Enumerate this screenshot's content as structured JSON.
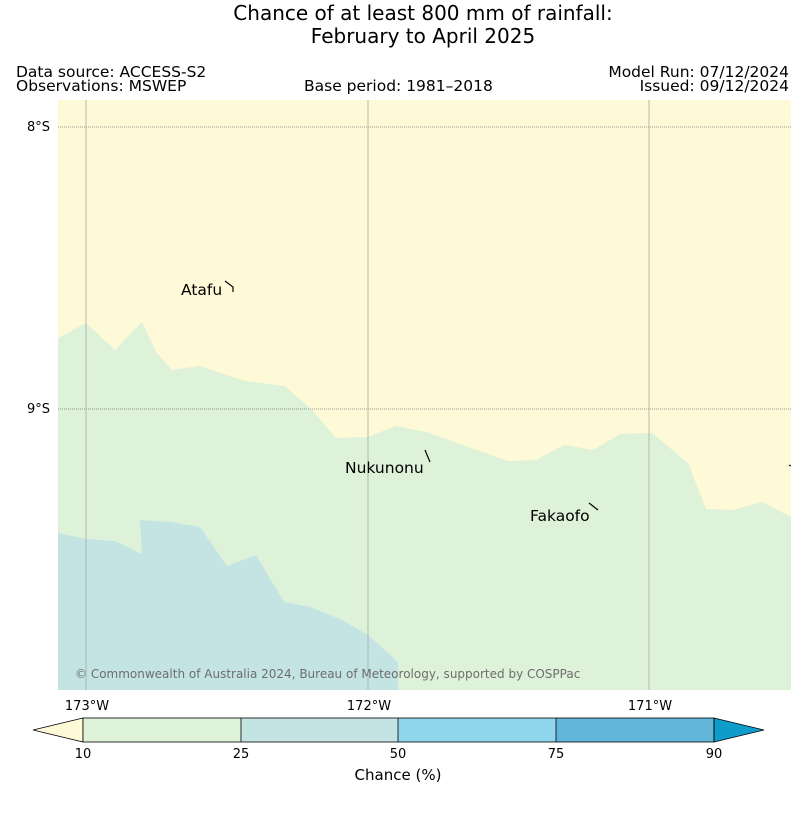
{
  "title": {
    "line1": "Chance of at least 800 mm of rainfall:",
    "line2": "February to April 2025"
  },
  "header": {
    "data_source": "Data source: ACCESS-S2",
    "observations": "Observations: MSWEP",
    "base_period": "Base period: 1981–2018",
    "model_run": "Model Run: 07/12/2024",
    "issued": "Issued: 09/12/2024"
  },
  "map": {
    "latitude_labels": [
      "8°S",
      "9°S"
    ],
    "longitude_labels": [
      "173°W",
      "172°W",
      "171°W"
    ],
    "places": [
      "Atafu",
      "Nukunonu",
      "Fakaofo"
    ],
    "copyright": "© Commonwealth of Australia 2024, Bureau of Meteorology, supported by COSPPac",
    "zone_colors": {
      "below_10": "#fef9d6",
      "10_to_25": "#ddf2d8",
      "25_to_50": "#c3e4e3",
      "gridline": "#9e9e9e"
    }
  },
  "colorbar": {
    "title": "Chance (%)",
    "ticks": [
      "10",
      "25",
      "50",
      "75",
      "90"
    ],
    "colors": [
      "#fef9d6",
      "#ddf2d8",
      "#c3e4e3",
      "#8fd5ec",
      "#61b5d8",
      "#0e9ccb"
    ]
  }
}
